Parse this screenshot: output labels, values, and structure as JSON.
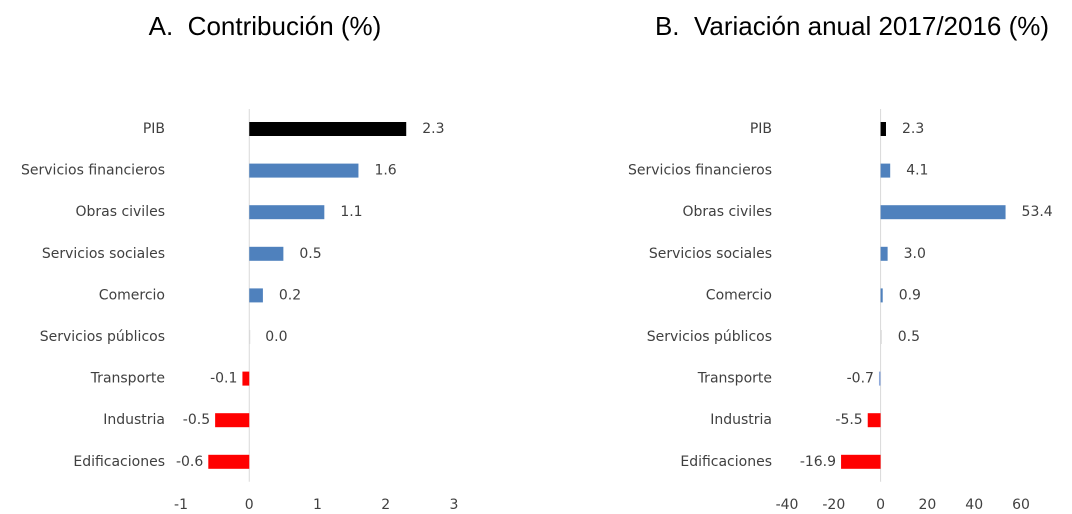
{
  "chart_data": [
    {
      "type": "bar",
      "orientation": "horizontal",
      "title": "A.  Contribución (%)",
      "categories": [
        "PIB",
        "Servicios financieros",
        "Obras civiles",
        "Servicios sociales",
        "Comercio",
        "Servicios públicos",
        "Transporte",
        "Industria",
        "Edificaciones"
      ],
      "values": [
        2.3,
        1.6,
        1.1,
        0.5,
        0.2,
        0.0,
        -0.1,
        -0.5,
        -0.6
      ],
      "value_labels": [
        "2.3",
        "1.6",
        "1.1",
        "0.5",
        "0.2",
        "0.0",
        "-0.1",
        "-0.5",
        "-0.6"
      ],
      "colors": [
        "#000000",
        "#4f81bd",
        "#4f81bd",
        "#4f81bd",
        "#4f81bd",
        "#d9d9d9",
        "#ff0000",
        "#ff0000",
        "#ff0000"
      ],
      "xlim": [
        -1,
        3
      ],
      "xticks": [
        -1,
        0,
        1,
        2,
        3
      ],
      "grid": false
    },
    {
      "type": "bar",
      "orientation": "horizontal",
      "title": "B.  Variación anual 2017/2016 (%)",
      "categories": [
        "PIB",
        "Servicios financieros",
        "Obras civiles",
        "Servicios sociales",
        "Comercio",
        "Servicios públicos",
        "Transporte",
        "Industria",
        "Edificaciones"
      ],
      "values": [
        2.3,
        4.1,
        53.4,
        3.0,
        0.9,
        0.5,
        -0.7,
        -5.5,
        -16.9
      ],
      "value_labels": [
        "2.3",
        "4.1",
        "53.4",
        "3.0",
        "0.9",
        "0.5",
        "-0.7",
        "-5.5",
        "-16.9"
      ],
      "colors": [
        "#000000",
        "#4f81bd",
        "#4f81bd",
        "#4f81bd",
        "#4f81bd",
        "#d9d9d9",
        "#8ea9db",
        "#ff0000",
        "#ff0000"
      ],
      "xlim": [
        -40,
        60
      ],
      "xticks": [
        -40,
        -20,
        0,
        20,
        40,
        60
      ],
      "grid": false
    }
  ]
}
